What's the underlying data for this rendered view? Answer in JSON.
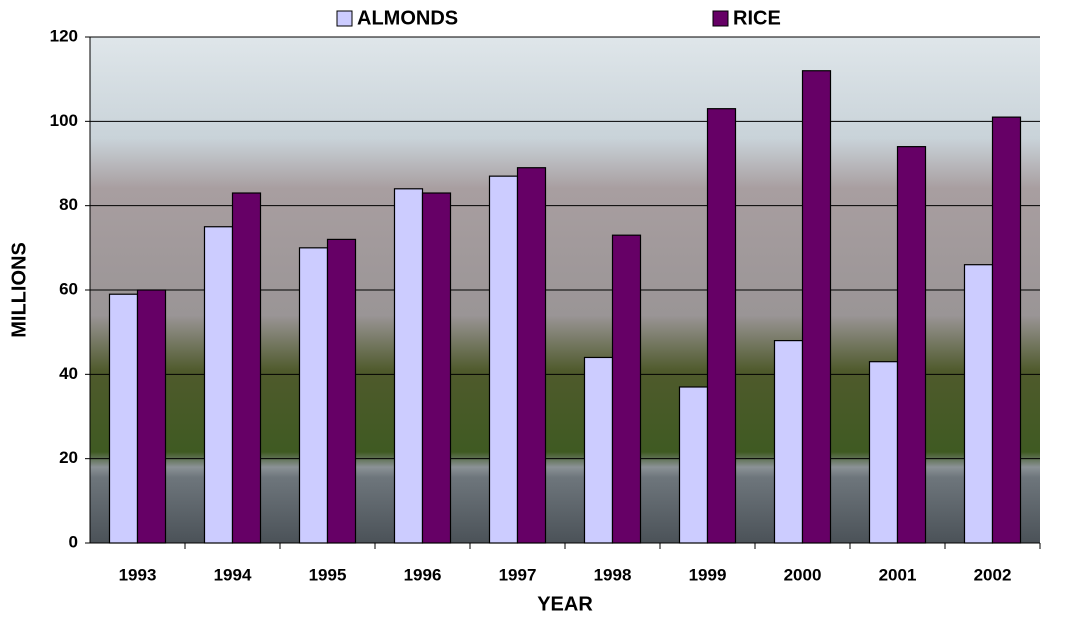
{
  "chart_data": {
    "type": "bar",
    "x_label": "YEAR",
    "y_label": "MILLIONS",
    "categories": [
      "1993",
      "1994",
      "1995",
      "1996",
      "1997",
      "1998",
      "1999",
      "2000",
      "2001",
      "2002"
    ],
    "series": [
      {
        "name": "ALMONDS",
        "color": "#ccccff",
        "values": [
          59,
          75,
          70,
          84,
          87,
          44,
          37,
          48,
          43,
          66
        ]
      },
      {
        "name": "RICE",
        "color": "#660066",
        "values": [
          60,
          83,
          72,
          83,
          89,
          73,
          103,
          112,
          94,
          101
        ]
      }
    ],
    "ylim": [
      0,
      120
    ],
    "yticks": [
      0,
      20,
      40,
      60,
      80,
      100,
      120
    ],
    "grid": true,
    "legend": "top"
  }
}
